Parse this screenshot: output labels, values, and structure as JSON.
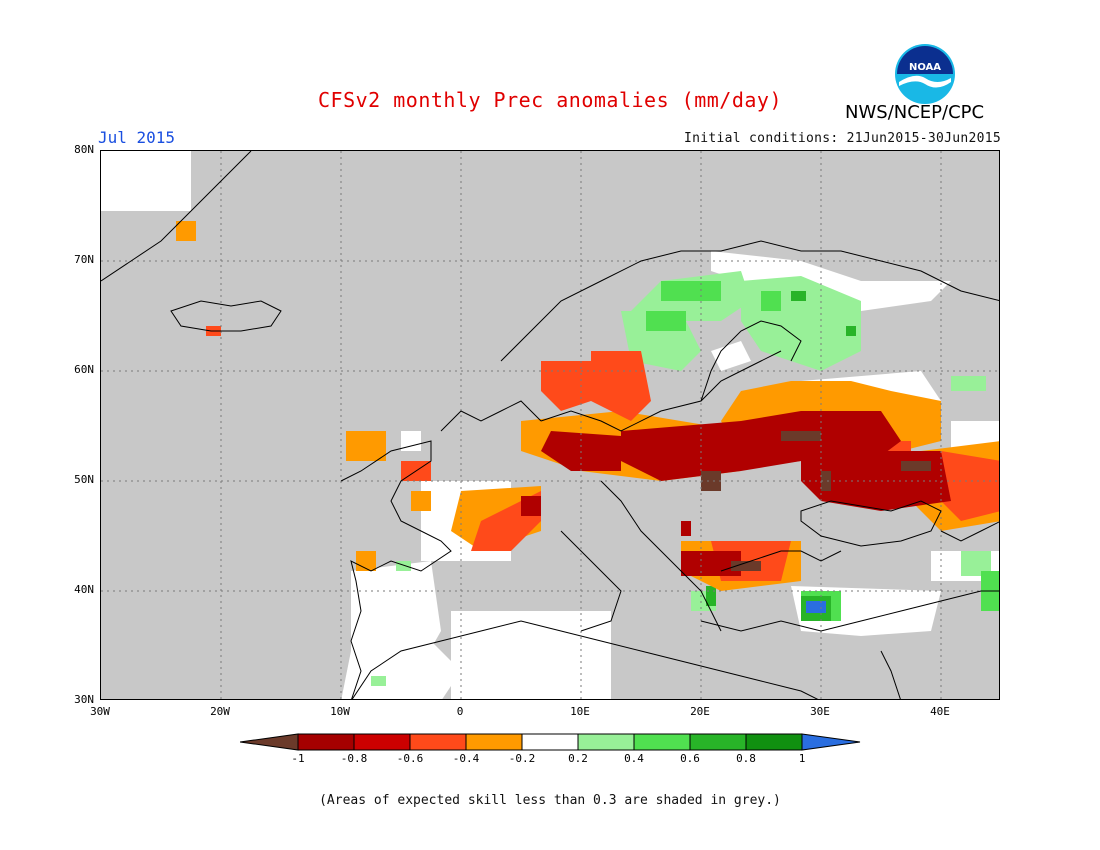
{
  "header": {
    "title": "CFSv2 monthly Prec anomalies (mm/day)",
    "month": "Jul 2015",
    "initial_conditions": "Initial conditions: 21Jun2015-30Jun2015",
    "agency": "NWS/NCEP/CPC",
    "logo_text": "NOAA"
  },
  "map": {
    "lon_range": [
      -30,
      45
    ],
    "lat_range": [
      30,
      80
    ],
    "y_ticks": [
      "80N",
      "70N",
      "60N",
      "50N",
      "40N",
      "30N"
    ],
    "x_ticks": [
      "30W",
      "20W",
      "10W",
      "0",
      "10E",
      "20E",
      "30E",
      "40E"
    ],
    "grey_meaning": "skill < 0.3"
  },
  "legend": {
    "labels": [
      "-1",
      "-0.8",
      "-0.6",
      "-0.4",
      "-0.2",
      "0.2",
      "0.4",
      "0.6",
      "0.8",
      "1"
    ],
    "colors": [
      "#6b3a2a",
      "#a50000",
      "#cc0000",
      "#ff4a1a",
      "#ff9a00",
      "#ffffff",
      "#98f098",
      "#50e050",
      "#28b428",
      "#109010",
      "#2a6ee0"
    ]
  },
  "note": "(Areas of expected skill less than 0.3 are shaded in grey.)"
}
